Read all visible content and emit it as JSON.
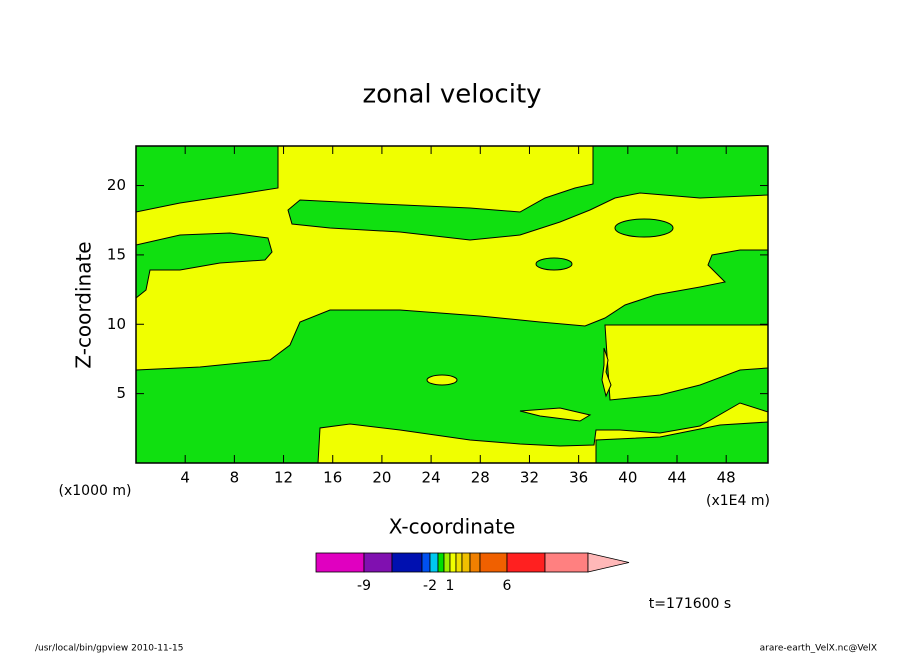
{
  "chart_data": {
    "type": "contour",
    "title": "zonal velocity",
    "x_label": "X-coordinate",
    "y_label": "Z-coordinate",
    "x_unit_left": "(x1000 m)",
    "x_unit_right": "(x1E4 m)",
    "time_label": "t=171600 s",
    "footer_left": "/usr/local/bin/gpview  2010-11-15",
    "footer_right": "arare-earth_VelX.nc@VelX",
    "xlim": [
      0,
      51.4
    ],
    "ylim": [
      0,
      22.85
    ],
    "xticks": [
      4,
      8,
      12,
      16,
      20,
      24,
      28,
      32,
      36,
      40,
      44,
      48
    ],
    "yticks": [
      5,
      10,
      15,
      20
    ],
    "field_colors": {
      "positive": "#f0ff00",
      "negative": "#10e010"
    },
    "colorbar": {
      "levels": [
        -12,
        -9,
        -6,
        -3,
        -2,
        -1,
        0,
        1,
        2,
        3,
        4,
        5,
        6,
        9,
        12
      ],
      "colors": [
        "#e000c0",
        "#8010b0",
        "#0010b0",
        "#0050f0",
        "#00c8f0",
        "#00e000",
        "#a0f000",
        "#f0ff00",
        "#f0e000",
        "#f0c000",
        "#f08000",
        "#f06000",
        "#ff2020",
        "#ff8080",
        "#ffb8b8"
      ],
      "ticks": [
        -9,
        -2,
        1,
        6
      ]
    }
  }
}
